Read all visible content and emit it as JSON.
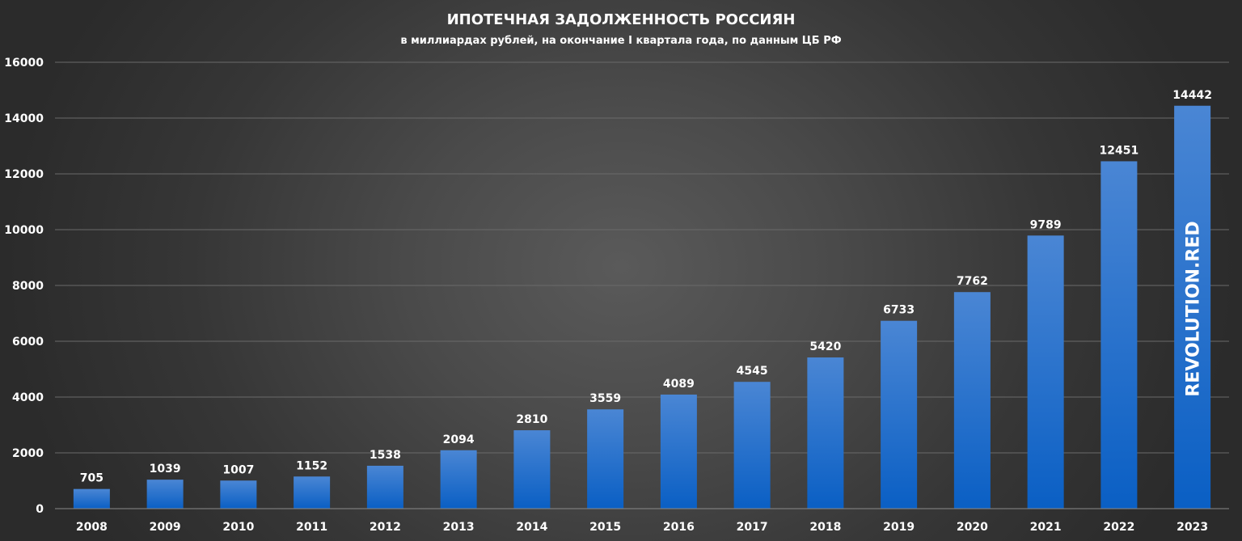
{
  "chart_data": {
    "type": "bar",
    "title": "ИПОТЕЧНАЯ ЗАДОЛЖЕННОСТЬ РОССИЯН",
    "subtitle": "в миллиардах рублей, на окончание I квартала года, по данным ЦБ РФ",
    "xlabel": "",
    "ylabel": "",
    "categories": [
      "2008",
      "2009",
      "2010",
      "2011",
      "2012",
      "2013",
      "2014",
      "2015",
      "2016",
      "2017",
      "2018",
      "2019",
      "2020",
      "2021",
      "2022",
      "2023"
    ],
    "values": [
      705,
      1039,
      1007,
      1152,
      1538,
      2094,
      2810,
      3559,
      4089,
      4545,
      5420,
      6733,
      7762,
      9789,
      12451,
      14442
    ],
    "ylim": [
      0,
      16000
    ],
    "yticks": [
      0,
      2000,
      4000,
      6000,
      8000,
      10000,
      12000,
      14000,
      16000
    ],
    "grid": true,
    "legend": "none",
    "bar_color_top": "#4a86d4",
    "bar_color_bottom": "#0a5fc4",
    "watermark": "REVOLUTION.RED"
  }
}
